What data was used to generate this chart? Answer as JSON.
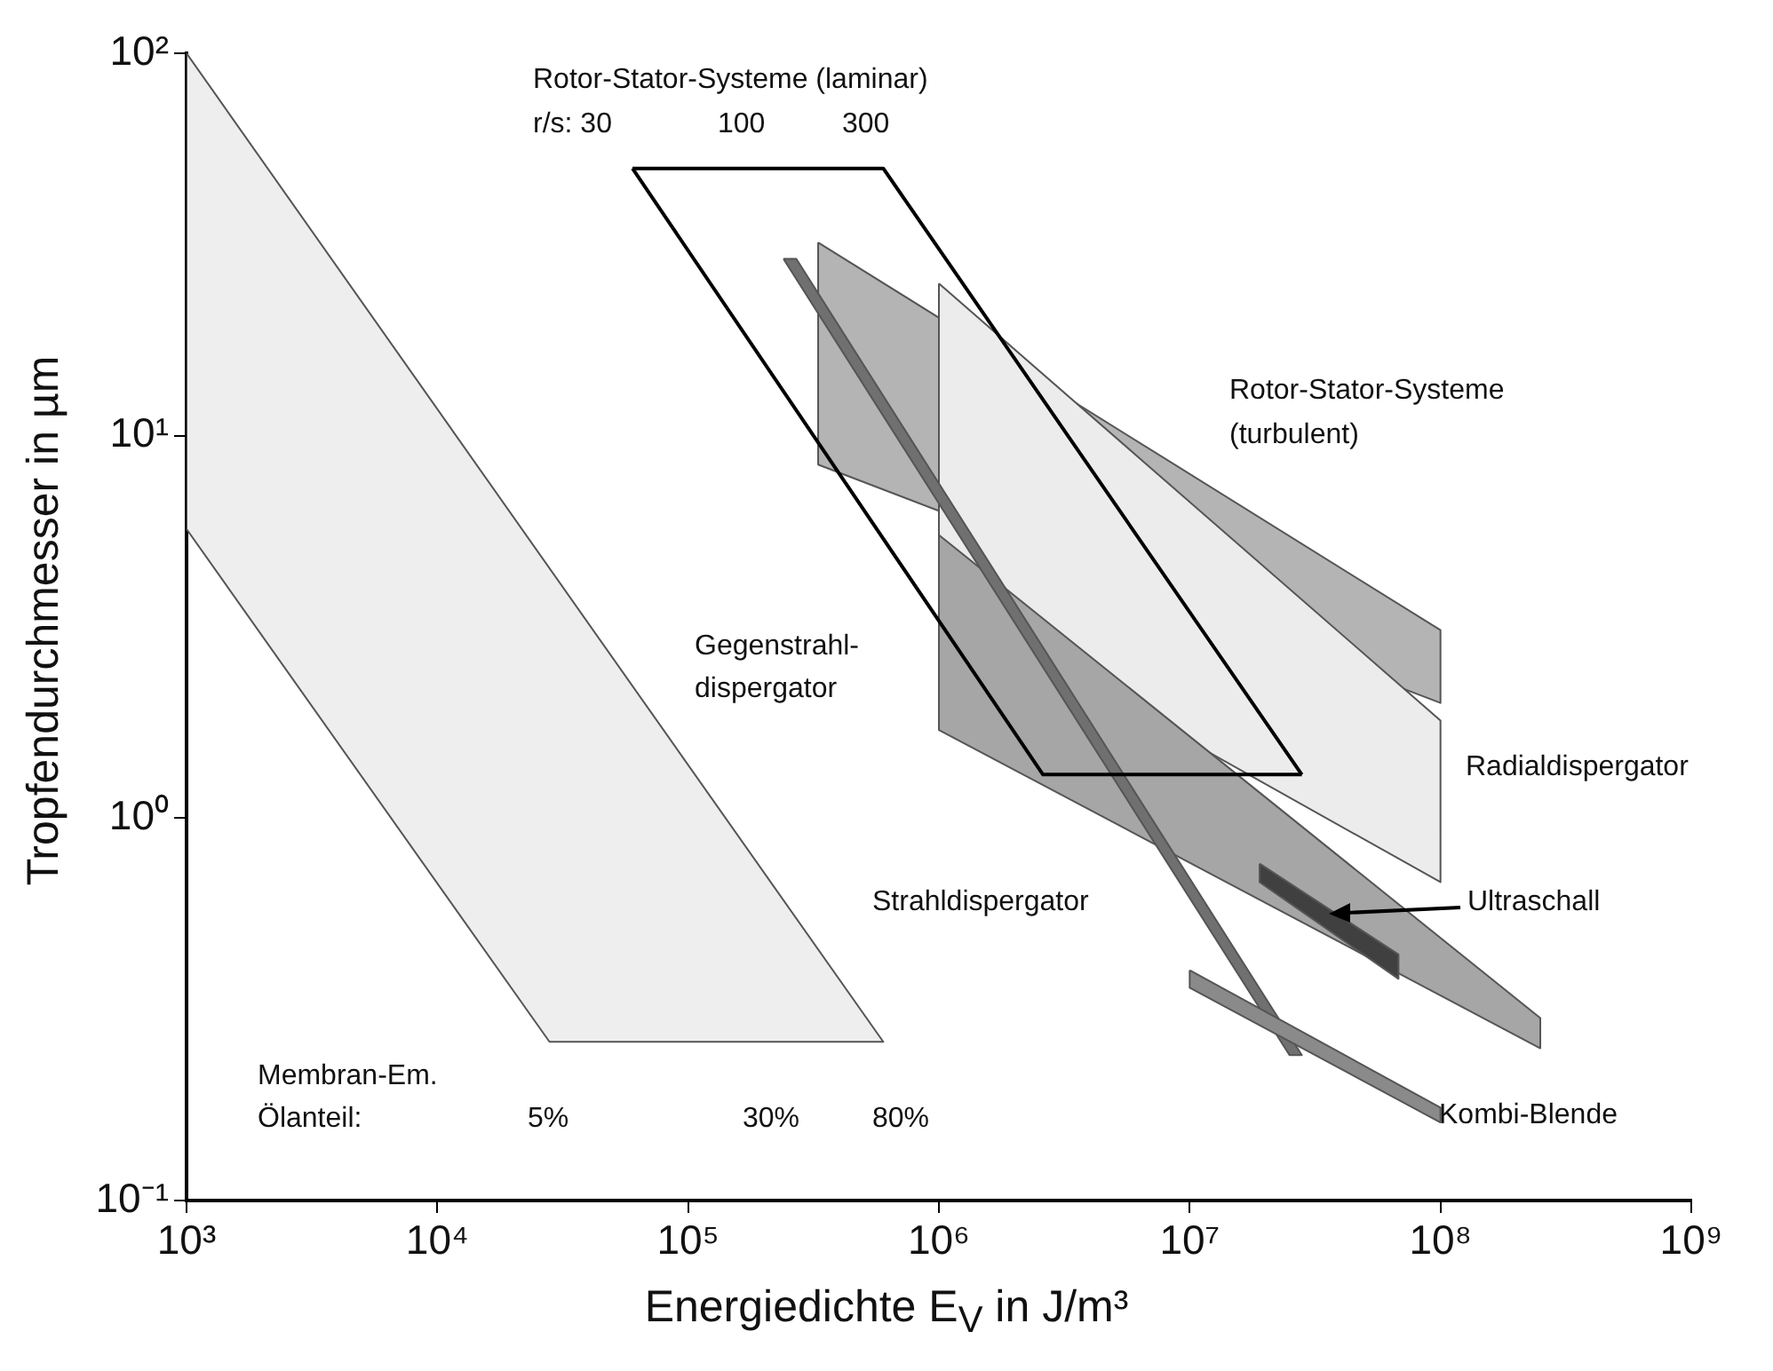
{
  "chart_data": {
    "type": "area",
    "xlabel": "Energiedichte E$_{V}$ in J/m³",
    "ylabel": "Tropfendurchmesser in µm",
    "log": "xy",
    "grid": false,
    "legend": false,
    "xlim": [
      1000,
      1000000000
    ],
    "ylim": [
      0.1,
      100
    ],
    "xticks": [
      {
        "value": 1000,
        "label": "10³"
      },
      {
        "value": 10000,
        "label": "10⁴"
      },
      {
        "value": 100000,
        "label": "10⁵"
      },
      {
        "value": 1000000,
        "label": "10⁶"
      },
      {
        "value": 10000000,
        "label": "10⁷"
      },
      {
        "value": 100000000,
        "label": "10⁸"
      },
      {
        "value": 1000000000,
        "label": "10⁹"
      }
    ],
    "yticks": [
      {
        "value": 0.1,
        "label": "10⁻¹"
      },
      {
        "value": 1,
        "label": "10⁰"
      },
      {
        "value": 10,
        "label": "10¹"
      },
      {
        "value": 100,
        "label": "10²"
      }
    ],
    "series": [
      {
        "color": "#eeeeee",
        "x": [
          1000,
          600000,
          28000,
          1000,
          1000
        ],
        "values": [
          100,
          0.26,
          0.26,
          5.7,
          100
        ]
      },
      {
        "color": "#b4b4b4",
        "x": [
          330000,
          100000000,
          100000000,
          330000,
          330000
        ],
        "values": [
          32,
          3.1,
          2,
          8.4,
          32
        ]
      },
      {
        "color": "#ececec",
        "x": [
          1000000,
          100000000,
          100000000,
          1000000,
          1000000
        ],
        "values": [
          25,
          1.8,
          0.68,
          3.7,
          25
        ]
      },
      {
        "color": "#a6a6a6",
        "x": [
          1000000,
          250000000,
          250000000,
          1000000,
          1000000
        ],
        "values": [
          5.5,
          0.3,
          0.25,
          1.7,
          5.5
        ]
      },
      {
        "color": "#707070",
        "x": [
          240000,
          270000,
          28000000,
          25000000,
          240000
        ],
        "values": [
          29,
          29,
          0.24,
          0.24,
          29
        ]
      },
      {
        "color": "#404040",
        "x": [
          19000000,
          68000000,
          68000000,
          19000000,
          19000000
        ],
        "values": [
          0.76,
          0.44,
          0.38,
          0.68,
          0.76
        ]
      },
      {
        "color": "#8a8a8a",
        "x": [
          10000000,
          100000000,
          100000000,
          10000000,
          10000000
        ],
        "values": [
          0.4,
          0.175,
          0.16,
          0.36,
          0.4
        ]
      },
      {
        "type": "line",
        "color": "#000000",
        "x": [
          60000,
          600000,
          28000000
        ],
        "values": [
          50,
          50,
          1.3
        ]
      },
      {
        "type": "line",
        "color": "#000000",
        "x": [
          60000,
          2600000,
          28000000
        ],
        "values": [
          50,
          1.3,
          1.3
        ]
      }
    ],
    "annotations": [
      "Rotor-Stator-Systeme (laminar)",
      "r/s: 30",
      "100",
      "300",
      "Rotor-Stator-Systeme",
      "(turbulent)",
      "Gegenstrahl-",
      "dispergator",
      "Radialdispergator",
      "Strahldispergator",
      "Ultraschall",
      "Kombi-Blende",
      "Membran-Em.",
      "Ölanteil:",
      "5%",
      "30%",
      "80%"
    ]
  }
}
